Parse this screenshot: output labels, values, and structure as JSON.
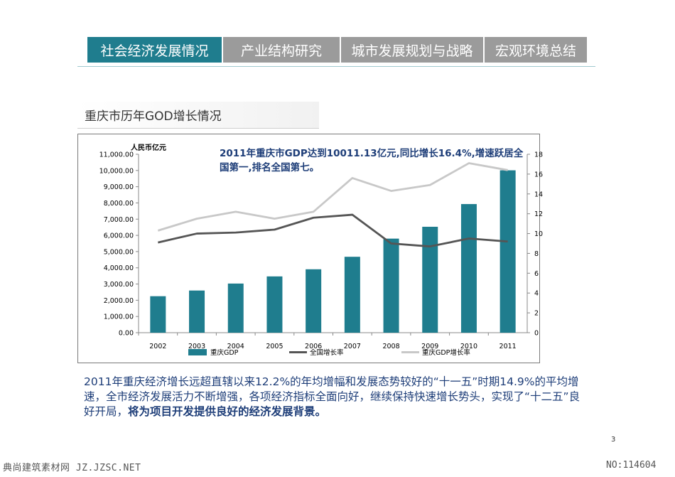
{
  "nav": {
    "tabs": [
      {
        "label": "社会经济发展情况",
        "active": true
      },
      {
        "label": "产业结构研究",
        "active": false
      },
      {
        "label": "城市发展规划与战略",
        "active": false
      },
      {
        "label": "宏观环境总结",
        "active": false
      }
    ]
  },
  "section_title": "重庆市历年GOD增长情况",
  "callout": "2011年重庆市GDP达到10011.13亿元,同比增长16.4%,增速跃居全国第一,排名全国第七。",
  "body": {
    "text": "2011年重庆经济增长远超直辖以来12.2%的年均增幅和发展态势较好的“十一五”时期14.9%的平均增速，全市经济发展活力不断增强，各项经济指标全面向好，继续保持快速增长势头，实现了“十二五”良好开局，",
    "bold": "将为项目开发提供良好的经济发展背景。"
  },
  "page_number": "3",
  "watermark": {
    "left": "典尚建筑素材网 JZ.JZSC.NET",
    "right": "NO:114604"
  },
  "colors": {
    "accent": "#1f7d8e",
    "tab_inactive": "#9b9b9b",
    "bar": "#1f7d8e",
    "national_line": "#555555",
    "cq_line": "#c8c8c8",
    "text_blue": "#1d3d78"
  },
  "chart_data": {
    "type": "bar",
    "ylabel_left": "人民币亿元",
    "categories": [
      "2002",
      "2003",
      "2004",
      "2005",
      "2006",
      "2007",
      "2008",
      "2009",
      "2010",
      "2011"
    ],
    "series": [
      {
        "name": "重庆GDP",
        "type": "bar",
        "axis": "left",
        "values": [
          2250,
          2600,
          3030,
          3470,
          3910,
          4680,
          5800,
          6530,
          7930,
          10011.13
        ]
      },
      {
        "name": "全国增长率",
        "type": "line",
        "axis": "right",
        "values": [
          9.1,
          10.0,
          10.1,
          10.4,
          11.6,
          11.9,
          9.0,
          8.7,
          9.5,
          9.2
        ]
      },
      {
        "name": "重庆GDP增长率",
        "type": "line",
        "axis": "right",
        "values": [
          10.3,
          11.5,
          12.2,
          11.5,
          12.2,
          15.6,
          14.3,
          14.9,
          17.1,
          16.4
        ]
      }
    ],
    "ylim_left": [
      0,
      11000
    ],
    "ylim_right": [
      0,
      18
    ],
    "yticks_left": [
      "0.00",
      "1,000.00",
      "2,000.00",
      "3,000.00",
      "4,000.00",
      "5,000.00",
      "6,000.00",
      "7,000.00",
      "8,000.00",
      "9,000.00",
      "10,000.00",
      "11,000.00"
    ],
    "yticks_right": [
      "0",
      "2",
      "4",
      "6",
      "8",
      "10",
      "12",
      "14",
      "16",
      "18"
    ],
    "legend_position": "bottom",
    "grid": false
  }
}
